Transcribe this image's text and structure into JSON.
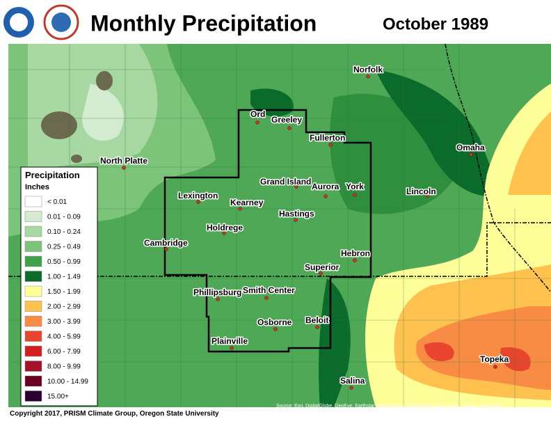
{
  "header": {
    "title": "Monthly Precipitation",
    "date": "October 1989"
  },
  "legend": {
    "title": "Precipitation",
    "units": "Inches",
    "items": [
      {
        "label": "< 0.01",
        "color": "#ffffff"
      },
      {
        "label": "0.01 - 0.09",
        "color": "#d3ebcf"
      },
      {
        "label": "0.10 - 0.24",
        "color": "#a8d8a2"
      },
      {
        "label": "0.25 - 0.49",
        "color": "#7cc47a"
      },
      {
        "label": "0.50 - 0.99",
        "color": "#3ea24c"
      },
      {
        "label": "1.00 - 1.49",
        "color": "#0b6b2a"
      },
      {
        "label": "1.50 - 1.99",
        "color": "#ffff99"
      },
      {
        "label": "2.00 - 2.99",
        "color": "#ffc24f"
      },
      {
        "label": "3.00 - 3.99",
        "color": "#f98c44"
      },
      {
        "label": "4.00 - 5.99",
        "color": "#e8452e"
      },
      {
        "label": "6.00 - 7.99",
        "color": "#d22020"
      },
      {
        "label": "8.00 - 9.99",
        "color": "#a5102a"
      },
      {
        "label": "10.00 - 14.99",
        "color": "#6a0020"
      },
      {
        "label": "15.00+",
        "color": "#2c0030"
      }
    ]
  },
  "cities": [
    "Norfolk",
    "Ord",
    "Greeley",
    "Fullerton",
    "North Platte",
    "Omaha",
    "Grand Island",
    "Aurora",
    "York",
    "Lexington",
    "Lincoln",
    "Kearney",
    "Hastings",
    "Holdrege",
    "Cambridge",
    "Hebron",
    "Superior",
    "Phillipsburg",
    "Smith Center",
    "Beloit",
    "Osborne",
    "Plainville",
    "Topeka",
    "Salina"
  ],
  "footer": {
    "copyright": "Copyright 2017, PRISM Climate Group, Oregon State University",
    "source": [
      "Source: Esri, DigitalGlobe, GeoEye, Earthstar Geographics, CNES/Airbus DS, USDA, USGS, AeroGRID,",
      "IGN, and the GIS User Community"
    ]
  }
}
